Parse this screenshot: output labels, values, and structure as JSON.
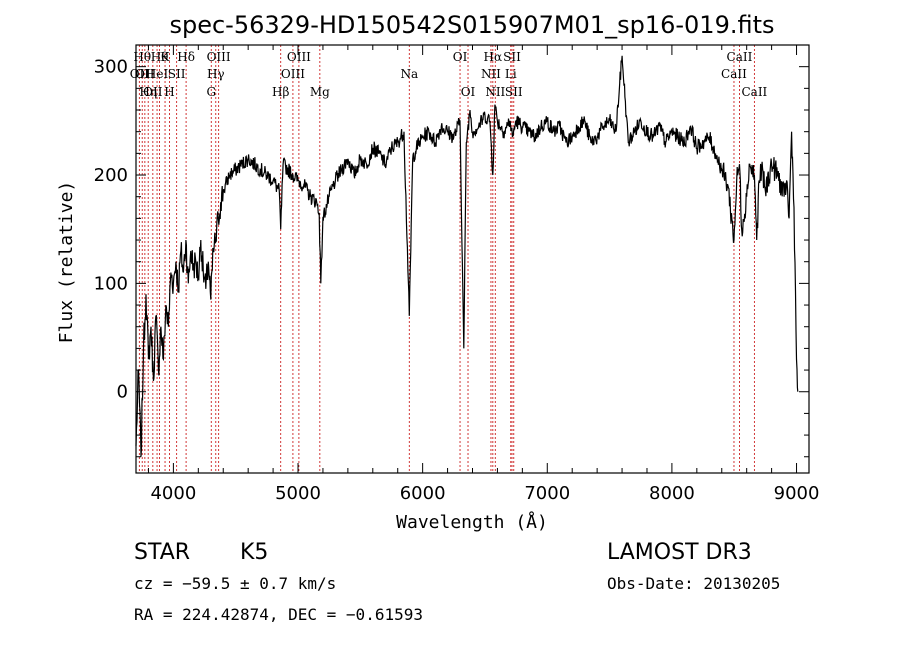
{
  "chart_data": {
    "type": "line",
    "title": "spec-56329-HD150542S015907M01_sp16-019.fits",
    "xlabel": "Wavelength (Å)",
    "ylabel": "Flux (relative)",
    "xlim": [
      3700,
      9100
    ],
    "ylim": [
      -75,
      320
    ],
    "xticks": [
      4000,
      5000,
      6000,
      7000,
      8000,
      9000
    ],
    "yticks": [
      0,
      100,
      200,
      300
    ],
    "series": [
      {
        "name": "flux",
        "x": [
          3700,
          3720,
          3740,
          3760,
          3780,
          3800,
          3820,
          3840,
          3860,
          3880,
          3900,
          3920,
          3940,
          3960,
          3980,
          4000,
          4020,
          4040,
          4060,
          4080,
          4100,
          4120,
          4140,
          4160,
          4180,
          4200,
          4220,
          4240,
          4260,
          4280,
          4300,
          4320,
          4340,
          4360,
          4380,
          4400,
          4450,
          4500,
          4550,
          4600,
          4650,
          4700,
          4750,
          4800,
          4850,
          4861,
          4880,
          4920,
          4960,
          5000,
          5050,
          5100,
          5150,
          5170,
          5183,
          5200,
          5250,
          5300,
          5350,
          5400,
          5450,
          5500,
          5550,
          5600,
          5650,
          5700,
          5750,
          5800,
          5850,
          5893,
          5920,
          5950,
          6000,
          6050,
          6100,
          6150,
          6200,
          6250,
          6300,
          6330,
          6350,
          6380,
          6400,
          6450,
          6500,
          6540,
          6563,
          6580,
          6600,
          6650,
          6700,
          6720,
          6750,
          6800,
          6850,
          6900,
          6950,
          7000,
          7050,
          7100,
          7150,
          7200,
          7250,
          7300,
          7350,
          7400,
          7450,
          7500,
          7550,
          7600,
          7650,
          7700,
          7750,
          7800,
          7850,
          7900,
          7950,
          8000,
          8050,
          8100,
          8150,
          8200,
          8250,
          8300,
          8350,
          8400,
          8450,
          8498,
          8520,
          8542,
          8560,
          8600,
          8620,
          8662,
          8680,
          8700,
          8720,
          8750,
          8800,
          8850,
          8900,
          8920,
          8940,
          8960,
          8980,
          9000,
          9010
        ],
        "y": [
          -50,
          20,
          -60,
          40,
          90,
          30,
          60,
          10,
          70,
          20,
          60,
          30,
          80,
          60,
          110,
          100,
          120,
          95,
          130,
          110,
          140,
          100,
          130,
          115,
          120,
          105,
          140,
          110,
          95,
          120,
          85,
          130,
          140,
          160,
          175,
          185,
          200,
          205,
          210,
          215,
          210,
          205,
          200,
          195,
          185,
          150,
          210,
          205,
          200,
          195,
          190,
          180,
          175,
          165,
          100,
          160,
          180,
          195,
          205,
          215,
          200,
          215,
          210,
          225,
          220,
          210,
          225,
          230,
          240,
          70,
          215,
          225,
          235,
          240,
          230,
          245,
          240,
          235,
          250,
          40,
          230,
          260,
          240,
          245,
          255,
          250,
          200,
          265,
          250,
          240,
          250,
          235,
          250,
          245,
          240,
          235,
          245,
          250,
          240,
          245,
          230,
          235,
          245,
          250,
          230,
          235,
          245,
          250,
          240,
          310,
          230,
          240,
          250,
          240,
          235,
          245,
          230,
          240,
          235,
          230,
          245,
          225,
          230,
          235,
          220,
          205,
          190,
          140,
          195,
          210,
          150,
          180,
          210,
          200,
          140,
          195,
          205,
          185,
          210,
          200,
          180,
          195,
          160,
          240,
          170,
          30,
          0
        ]
      }
    ],
    "spectral_lines": [
      {
        "wavelength": 3727,
        "label": "OII",
        "row": 2
      },
      {
        "wavelength": 3750,
        "label": "Hθ",
        "row": 1
      },
      {
        "wavelength": 3771,
        "label": "OII",
        "row": 2
      },
      {
        "wavelength": 3798,
        "label": "Hη",
        "row": 3
      },
      {
        "wavelength": 3835,
        "label": "OII",
        "row": 3
      },
      {
        "wavelength": 3869,
        "label": "HeI",
        "row": 2
      },
      {
        "wavelength": 3889,
        "label": "Hθ",
        "row": 1
      },
      {
        "wavelength": 3933,
        "label": "K",
        "row": 1
      },
      {
        "wavelength": 3969,
        "label": "H",
        "row": 3
      },
      {
        "wavelength": 4026,
        "label": "SII",
        "row": 2
      },
      {
        "wavelength": 4102,
        "label": "Hδ",
        "row": 1
      },
      {
        "wavelength": 4304,
        "label": "G",
        "row": 3
      },
      {
        "wavelength": 4340,
        "label": "Hγ",
        "row": 2
      },
      {
        "wavelength": 4363,
        "label": "OIII",
        "row": 1
      },
      {
        "wavelength": 4861,
        "label": "Hβ",
        "row": 3
      },
      {
        "wavelength": 4959,
        "label": "OIII",
        "row": 2
      },
      {
        "wavelength": 5007,
        "label": "OIII",
        "row": 1
      },
      {
        "wavelength": 5175,
        "label": "Mg",
        "row": 3
      },
      {
        "wavelength": 5893,
        "label": "Na",
        "row": 2
      },
      {
        "wavelength": 6300,
        "label": "OI",
        "row": 1
      },
      {
        "wavelength": 6364,
        "label": "OI",
        "row": 3
      },
      {
        "wavelength": 6548,
        "label": "NII",
        "row": 2
      },
      {
        "wavelength": 6563,
        "label": "Hα",
        "row": 1
      },
      {
        "wavelength": 6583,
        "label": "NII",
        "row": 3
      },
      {
        "wavelength": 6707,
        "label": "Li",
        "row": 2
      },
      {
        "wavelength": 6717,
        "label": "SII",
        "row": 1
      },
      {
        "wavelength": 6731,
        "label": "SII",
        "row": 3
      },
      {
        "wavelength": 8498,
        "label": "CaII",
        "row": 2
      },
      {
        "wavelength": 8542,
        "label": "CaII",
        "row": 1
      },
      {
        "wavelength": 8662,
        "label": "CaII",
        "row": 3
      }
    ]
  },
  "info": {
    "object_class": "STAR",
    "subclass": "K5",
    "survey": "LAMOST DR3",
    "cz": "cz = −59.5 ± 0.7 km/s",
    "obs_date": "Obs-Date: 20130205",
    "coords": "RA = 224.42874, DEC =  −0.61593"
  },
  "colors": {
    "line_marker": "#cc2222",
    "spectrum": "#000000",
    "axes": "#000000"
  }
}
